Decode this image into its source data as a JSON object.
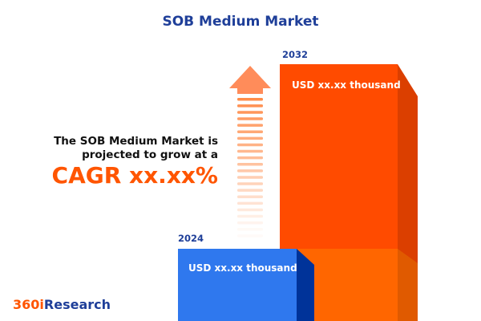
{
  "title": "SOB Medium Market",
  "description": {
    "line1": "The SOB Medium Market is",
    "line2": "projected to grow at a",
    "cagr": "CAGR xx.xx%"
  },
  "logo": {
    "part1": "360i",
    "part2": "Research"
  },
  "colors": {
    "title": "#1f3f99",
    "bar_2024": "#2f78ee",
    "bar_2032": "#ff4b00",
    "accent": "#ff5500"
  },
  "chart_data": {
    "type": "bar",
    "categories": [
      "2024",
      "2032"
    ],
    "value_labels": [
      "USD xx.xx thousand",
      "USD xx.xx thousand"
    ],
    "title": "SOB Medium Market"
  }
}
